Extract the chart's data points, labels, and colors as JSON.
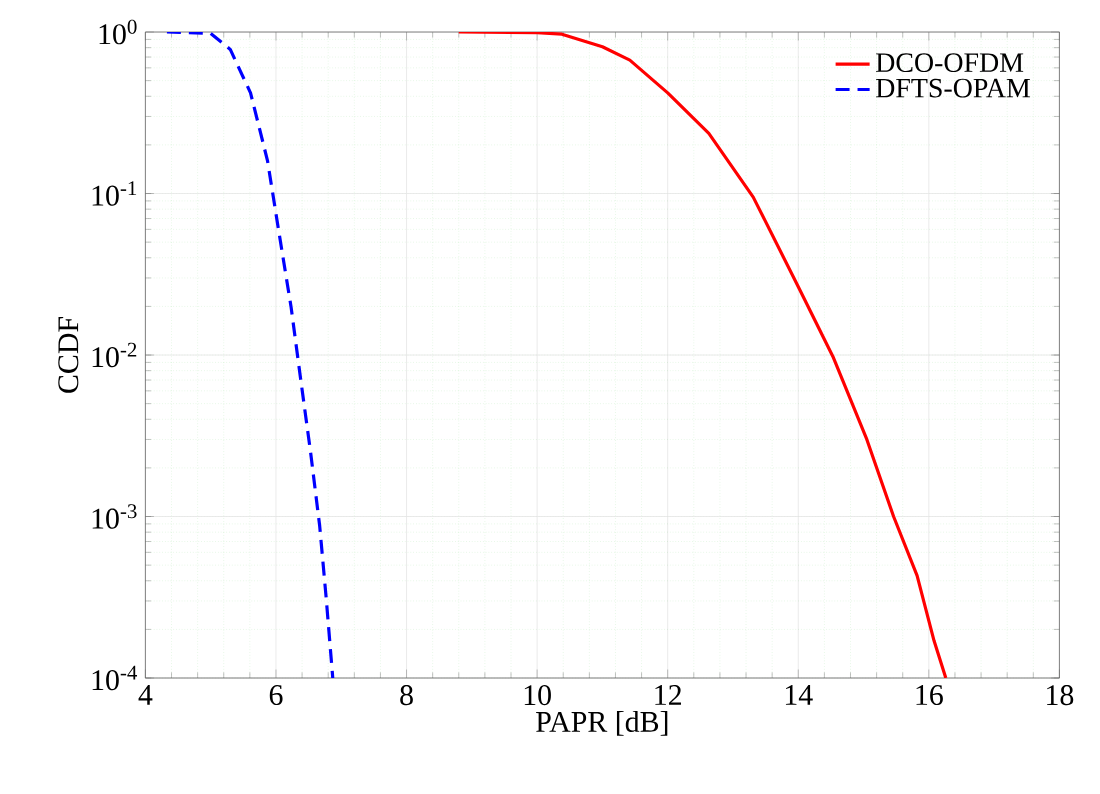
{
  "chart_data": {
    "type": "line",
    "xlabel": "PAPR [dB]",
    "ylabel": "CCDF",
    "log": "y",
    "xlim": [
      4,
      18
    ],
    "ylim": [
      0.0001,
      1
    ],
    "xticks": [
      4,
      6,
      8,
      10,
      12,
      14,
      16,
      18
    ],
    "yticks": [
      {
        "value": 0.0001,
        "label": "10$^{-4}$"
      },
      {
        "value": 0.001,
        "label": "10$^{-3}$"
      },
      {
        "value": 0.01,
        "label": "10$^{-2}$"
      },
      {
        "value": 0.1,
        "label": "10$^{-1}$"
      },
      {
        "value": 1,
        "label": "10$^{0}$"
      }
    ],
    "grid": true,
    "legend": "top right",
    "marker": "none",
    "series": [
      {
        "name": "DCO-OFDM",
        "color": "#ff0000",
        "line_style": "solid",
        "x": [
          8.8,
          10,
          10.38,
          11,
          11.42,
          12,
          12.63,
          13.31,
          14,
          14.53,
          15.05,
          15.46,
          15.82,
          16.08,
          16.26
        ],
        "values": [
          1,
          0.99,
          0.97,
          0.81,
          0.67,
          0.42,
          0.236,
          0.095,
          0.0265,
          0.0098,
          0.003,
          0.001,
          0.00043,
          0.00017,
          0.0001
        ]
      },
      {
        "name": "DFTS-OPAM",
        "color": "#0000ff",
        "line_style": "dashed",
        "x": [
          4.33,
          5.0,
          5.3,
          5.61,
          5.87,
          6.05,
          6.23,
          6.38,
          6.53,
          6.67,
          6.77,
          6.87
        ],
        "values": [
          1,
          0.98,
          0.78,
          0.42,
          0.16,
          0.056,
          0.02,
          0.007,
          0.0025,
          0.00087,
          0.00031,
          0.0001
        ]
      }
    ]
  }
}
